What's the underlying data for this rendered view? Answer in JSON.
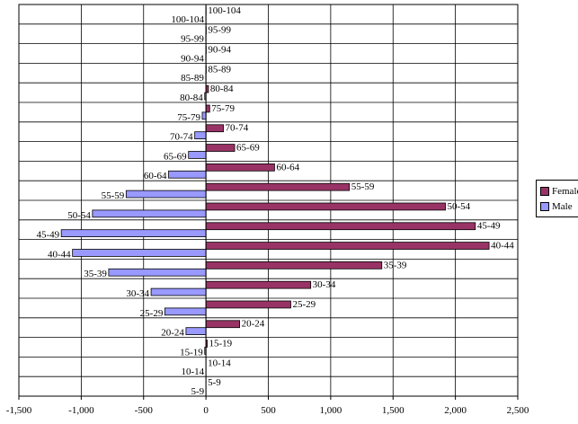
{
  "chart_data": {
    "type": "bar",
    "orientation": "horizontal",
    "title": "",
    "xlabel": "",
    "ylabel": "",
    "xlim": [
      -1500,
      2500
    ],
    "x_ticks": [
      -1500,
      -1000,
      -500,
      0,
      500,
      1000,
      1500,
      2000,
      2500
    ],
    "x_tick_labels": [
      "-1,500",
      "-1,000",
      "-500",
      "0",
      "500",
      "1,000",
      "1,500",
      "2,000",
      "2,500"
    ],
    "grid": true,
    "legend_position": "right",
    "series": [
      {
        "name": "Female",
        "color": "#993366",
        "categories": [
          "5-9",
          "10-14",
          "15-19",
          "20-24",
          "25-29",
          "30-34",
          "35-39",
          "40-44",
          "45-49",
          "50-54",
          "55-59",
          "60-64",
          "65-69",
          "70-74",
          "75-79",
          "80-84",
          "85-89",
          "90-94",
          "95-99",
          "100-104"
        ],
        "values": [
          0,
          0,
          10,
          270,
          680,
          840,
          1410,
          2270,
          2160,
          1920,
          1150,
          550,
          230,
          140,
          30,
          20,
          2,
          2,
          2,
          1
        ]
      },
      {
        "name": "Male",
        "color": "#9999ff",
        "categories": [
          "5-9",
          "10-14",
          "15-19",
          "20-24",
          "25-29",
          "30-34",
          "35-39",
          "40-44",
          "45-49",
          "50-54",
          "55-59",
          "60-64",
          "65-69",
          "70-74",
          "75-79",
          "80-84",
          "85-89",
          "90-94",
          "95-99",
          "100-104"
        ],
        "values": [
          0,
          0,
          10,
          160,
          330,
          440,
          780,
          1070,
          1160,
          910,
          640,
          300,
          140,
          90,
          30,
          10,
          2,
          2,
          2,
          1
        ]
      }
    ]
  }
}
